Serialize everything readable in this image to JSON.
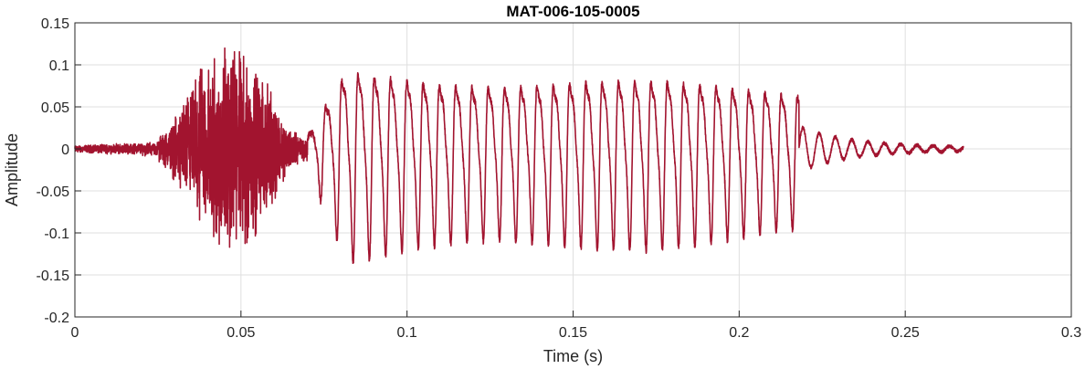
{
  "chart_data": {
    "type": "line",
    "title": "MAT-006-105-0005",
    "xlabel": "Time (s)",
    "ylabel": "Amplitude",
    "xlim": [
      0,
      0.3
    ],
    "ylim": [
      -0.2,
      0.15
    ],
    "xticks": [
      0,
      0.05,
      0.1,
      0.15,
      0.2,
      0.25,
      0.3
    ],
    "xtick_labels": [
      "0",
      "0.05",
      "0.1",
      "0.15",
      "0.2",
      "0.25",
      "0.3"
    ],
    "yticks": [
      -0.2,
      -0.15,
      -0.1,
      -0.05,
      0,
      0.05,
      0.1,
      0.15
    ],
    "ytick_labels": [
      "-0.2",
      "-0.15",
      "-0.1",
      "-0.05",
      "0",
      "0.05",
      "0.1",
      "0.15"
    ],
    "grid": true,
    "line_color": "#A2142F",
    "series": [
      {
        "x_range": [
          0,
          0.2675
        ],
        "segments": [
          {
            "t": [
              0.0,
              0.025
            ],
            "kind": "noise",
            "amp": [
              0.005,
              0.01
            ]
          },
          {
            "t": [
              0.025,
              0.07
            ],
            "kind": "noise",
            "amp": [
              0.02,
              0.14
            ]
          },
          {
            "t": [
              0.07,
              0.218
            ],
            "kind": "voiced",
            "period": 0.0049,
            "amp": [
              0.08,
              0.125
            ]
          },
          {
            "t": [
              0.218,
              0.2675
            ],
            "kind": "decay",
            "period": 0.0049,
            "amp": [
              0.025,
              0.002
            ]
          }
        ],
        "min": -0.152,
        "max": 0.15
      }
    ]
  }
}
